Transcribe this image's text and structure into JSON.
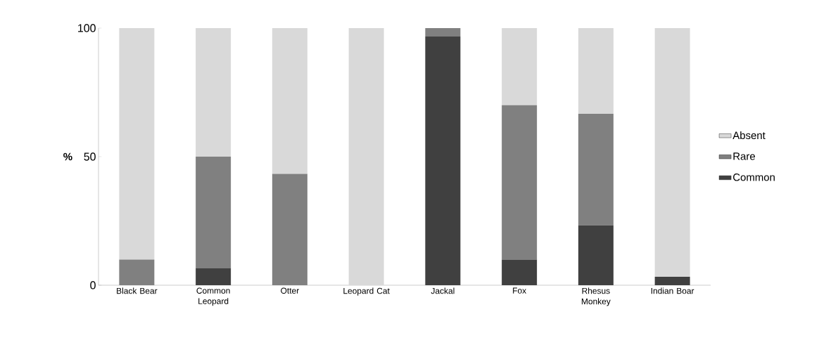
{
  "chart_data": {
    "type": "bar",
    "stacked": true,
    "ylabel": "%",
    "categories": [
      "Black Bear",
      "Common Leopard",
      "Otter",
      "Leopard Cat",
      "Jackal",
      "Fox",
      "Rhesus Monkey",
      "Indian Boar"
    ],
    "series": [
      {
        "name": "Common",
        "color": "#404040",
        "values": [
          0,
          6.7,
          0,
          0,
          96.7,
          10,
          23.3,
          3.3
        ]
      },
      {
        "name": "Rare",
        "color": "#808080",
        "values": [
          10,
          43.3,
          43.3,
          0,
          3.3,
          60,
          43.4,
          0
        ]
      },
      {
        "name": "Absent",
        "color": "#d9d9d9",
        "values": [
          90,
          50,
          56.7,
          100,
          0,
          30,
          33.3,
          96.7
        ]
      }
    ],
    "ylim": [
      0,
      100
    ],
    "yticks": [
      0,
      50,
      100
    ],
    "grid": false,
    "legend": "right"
  }
}
